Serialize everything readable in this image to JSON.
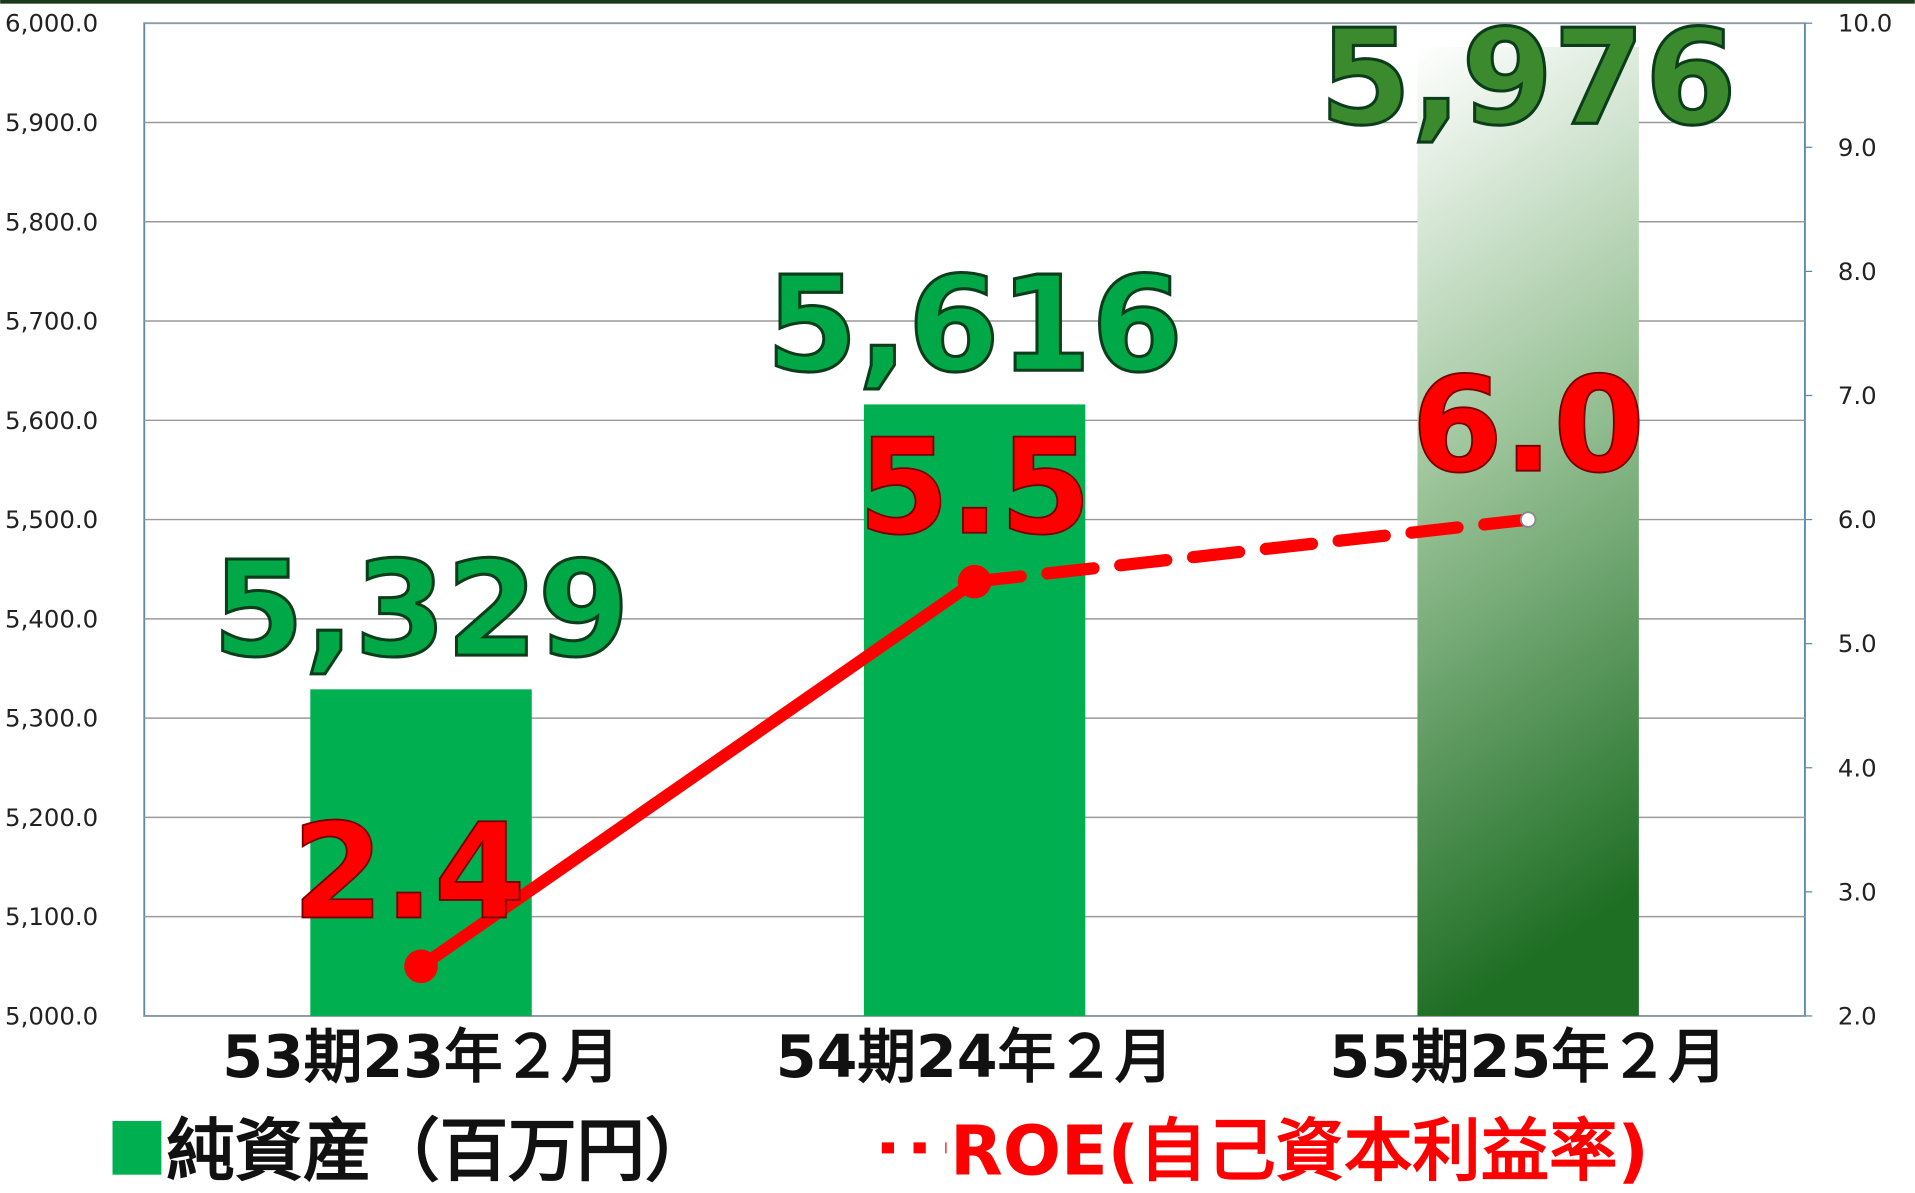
{
  "chart_data": {
    "type": "bar",
    "categories": [
      "53期23年２月",
      "54期24年２月",
      "55期25年２月"
    ],
    "series": [
      {
        "name": "純資産（百万円）",
        "type": "bar",
        "color": "#00b050",
        "values": [
          5329,
          5616,
          5976
        ],
        "value_labels": [
          "5,329",
          "5,616",
          "5,976"
        ]
      },
      {
        "name": "ROE(自己資本利益率)",
        "type": "line",
        "axis": "y2",
        "color": "#ff0000",
        "values": [
          2.4,
          5.5,
          6.0
        ],
        "value_labels": [
          "2.4",
          "5.5",
          "6.0"
        ]
      }
    ],
    "highlight_last": true,
    "ylim": [
      5000,
      6000
    ],
    "yticks": [
      {
        "value": 5000,
        "label": "5,000.0"
      },
      {
        "value": 5100,
        "label": "5,100.0"
      },
      {
        "value": 5200,
        "label": "5,200.0"
      },
      {
        "value": 5300,
        "label": "5,300.0"
      },
      {
        "value": 5400,
        "label": "5,400.0"
      },
      {
        "value": 5500,
        "label": "5,500.0"
      },
      {
        "value": 5600,
        "label": "5,600.0"
      },
      {
        "value": 5700,
        "label": "5,700.0"
      },
      {
        "value": 5800,
        "label": "5,800.0"
      },
      {
        "value": 5900,
        "label": "5,900.0"
      },
      {
        "value": 6000,
        "label": "6,000.0"
      }
    ],
    "y2lim": [
      2,
      10
    ],
    "y2ticks": [
      {
        "value": 2,
        "label": "2.0"
      },
      {
        "value": 3,
        "label": "3.0"
      },
      {
        "value": 4,
        "label": "4.0"
      },
      {
        "value": 5,
        "label": "5.0"
      },
      {
        "value": 6,
        "label": "6.0"
      },
      {
        "value": 7,
        "label": "7.0"
      },
      {
        "value": 8,
        "label": "8.0"
      },
      {
        "value": 9,
        "label": "9.0"
      },
      {
        "value": 10,
        "label": "10.0"
      }
    ],
    "grid": true
  }
}
